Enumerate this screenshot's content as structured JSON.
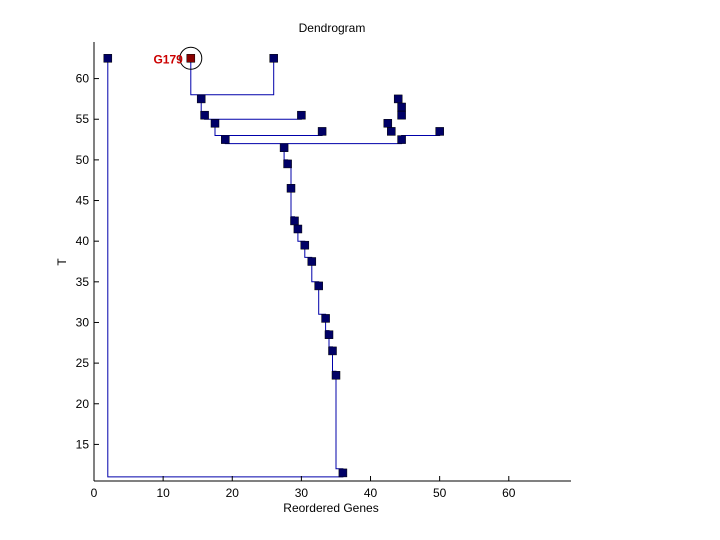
{
  "chart_data": {
    "type": "scatter",
    "title": "Dendrogram",
    "xlabel": "Reordered Genes",
    "ylabel": "T",
    "xlim": [
      0,
      69
    ],
    "ylim": [
      10.5,
      64.5
    ],
    "xticks": [
      0,
      10,
      20,
      30,
      40,
      50,
      60
    ],
    "yticks": [
      15,
      20,
      25,
      30,
      35,
      40,
      45,
      50,
      55,
      60
    ],
    "colors": {
      "node": "#000066",
      "line": "#0000aa",
      "highlight": "#880000",
      "label": "#cc0000"
    },
    "highlight": {
      "label": "G179",
      "x": 14,
      "y": 62.5
    },
    "points": [
      {
        "x": 2,
        "y": 62.5
      },
      {
        "x": 14,
        "y": 62.5
      },
      {
        "x": 26,
        "y": 62.5
      },
      {
        "x": 15.5,
        "y": 57.5
      },
      {
        "x": 16,
        "y": 55.5
      },
      {
        "x": 30,
        "y": 55.5
      },
      {
        "x": 17.5,
        "y": 54.5
      },
      {
        "x": 19,
        "y": 52.5
      },
      {
        "x": 33,
        "y": 53.5
      },
      {
        "x": 44,
        "y": 57.5
      },
      {
        "x": 44.5,
        "y": 56.5
      },
      {
        "x": 44.5,
        "y": 55.5
      },
      {
        "x": 42.5,
        "y": 54.5
      },
      {
        "x": 43,
        "y": 53.5
      },
      {
        "x": 44.5,
        "y": 52.5
      },
      {
        "x": 50,
        "y": 53.5
      },
      {
        "x": 27.5,
        "y": 51.5
      },
      {
        "x": 28,
        "y": 49.5
      },
      {
        "x": 28.5,
        "y": 46.5
      },
      {
        "x": 29,
        "y": 42.5
      },
      {
        "x": 29.5,
        "y": 41.5
      },
      {
        "x": 30.5,
        "y": 39.5
      },
      {
        "x": 31.5,
        "y": 37.5
      },
      {
        "x": 32.5,
        "y": 34.5
      },
      {
        "x": 33.5,
        "y": 30.5
      },
      {
        "x": 34,
        "y": 28.5
      },
      {
        "x": 34.5,
        "y": 26.5
      },
      {
        "x": 35,
        "y": 23.5
      },
      {
        "x": 36,
        "y": 11.5
      }
    ],
    "links": [
      [
        [
          2,
          62.5
        ],
        [
          2,
          11
        ],
        [
          36,
          11
        ],
        [
          36,
          11.5
        ]
      ],
      [
        [
          14,
          62.5
        ],
        [
          14,
          58
        ],
        [
          26,
          58
        ],
        [
          26,
          62.5
        ]
      ],
      [
        [
          15.5,
          57.5
        ],
        [
          15.5,
          55.5
        ],
        [
          16,
          55.5
        ]
      ],
      [
        [
          16,
          55.5
        ],
        [
          16,
          55
        ],
        [
          30,
          55
        ],
        [
          30,
          55.5
        ]
      ],
      [
        [
          17.5,
          54.5
        ],
        [
          17.5,
          53
        ],
        [
          33,
          53
        ],
        [
          33,
          53.5
        ]
      ],
      [
        [
          19,
          52.5
        ],
        [
          19,
          52
        ],
        [
          44.5,
          52
        ],
        [
          44.5,
          52.5
        ]
      ],
      [
        [
          44.5,
          52.5
        ],
        [
          44.5,
          53
        ],
        [
          50,
          53
        ],
        [
          50,
          53.5
        ]
      ],
      [
        [
          27.5,
          51.5
        ],
        [
          27.5,
          50
        ],
        [
          28,
          50
        ],
        [
          28,
          49.5
        ]
      ],
      [
        [
          28,
          49.5
        ],
        [
          28.5,
          49.5
        ],
        [
          28.5,
          46.5
        ]
      ],
      [
        [
          28.5,
          46.5
        ],
        [
          28.5,
          43
        ],
        [
          29,
          43
        ],
        [
          29,
          42.5
        ]
      ],
      [
        [
          29,
          42.5
        ],
        [
          29.5,
          42
        ],
        [
          29.5,
          41.5
        ]
      ],
      [
        [
          29.5,
          41.5
        ],
        [
          29.5,
          40
        ],
        [
          30.5,
          40
        ],
        [
          30.5,
          39.5
        ]
      ],
      [
        [
          30.5,
          39.5
        ],
        [
          30.5,
          38
        ],
        [
          31.5,
          38
        ],
        [
          31.5,
          37.5
        ]
      ],
      [
        [
          31.5,
          37.5
        ],
        [
          31.5,
          35
        ],
        [
          32.5,
          35
        ],
        [
          32.5,
          34.5
        ]
      ],
      [
        [
          32.5,
          34.5
        ],
        [
          32.5,
          31
        ],
        [
          33.5,
          31
        ],
        [
          33.5,
          30.5
        ]
      ],
      [
        [
          33.5,
          30.5
        ],
        [
          33.5,
          29
        ],
        [
          34,
          29
        ],
        [
          34,
          28.5
        ]
      ],
      [
        [
          34,
          28.5
        ],
        [
          34,
          27
        ],
        [
          34.5,
          27
        ],
        [
          34.5,
          26.5
        ]
      ],
      [
        [
          34.5,
          26.5
        ],
        [
          34.5,
          24
        ],
        [
          35,
          24
        ],
        [
          35,
          23.5
        ]
      ],
      [
        [
          35,
          23.5
        ],
        [
          35,
          12
        ],
        [
          36,
          12
        ],
        [
          36,
          11.5
        ]
      ]
    ]
  }
}
